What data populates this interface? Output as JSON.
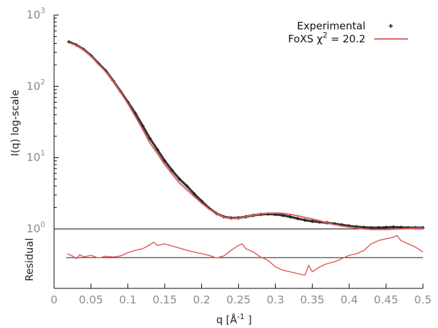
{
  "chart_data": [
    {
      "type": "scatter",
      "panel": "main",
      "ylabel": "I(q) log-scale",
      "yscale": "log",
      "ylim": [
        1,
        1000
      ],
      "xlim": [
        0,
        0.5
      ],
      "y_ticks": [
        {
          "value": 1,
          "base": "10",
          "exp": "0"
        },
        {
          "value": 10,
          "base": "10",
          "exp": "1"
        },
        {
          "value": 100,
          "base": "10",
          "exp": "2"
        },
        {
          "value": 1000,
          "base": "10",
          "exp": "3"
        }
      ],
      "legend": {
        "placement": "top-right",
        "experimental_label": "Experimental",
        "fit_prefix": "FoXS χ",
        "fit_sup": "2",
        "fit_suffix": " = 20.2"
      },
      "series": [
        {
          "name": "Experimental",
          "style": "points",
          "color": "#222222",
          "x": [
            0.02,
            0.03,
            0.04,
            0.05,
            0.06,
            0.07,
            0.08,
            0.09,
            0.1,
            0.11,
            0.12,
            0.13,
            0.14,
            0.15,
            0.16,
            0.17,
            0.18,
            0.19,
            0.2,
            0.21,
            0.22,
            0.23,
            0.24,
            0.25,
            0.26,
            0.27,
            0.28,
            0.29,
            0.3,
            0.31,
            0.32,
            0.33,
            0.34,
            0.35,
            0.36,
            0.37,
            0.38,
            0.39,
            0.4,
            0.41,
            0.42,
            0.43,
            0.44,
            0.45,
            0.46,
            0.47,
            0.48,
            0.49,
            0.5
          ],
          "y": [
            420,
            380,
            330,
            270,
            210,
            165,
            120,
            85,
            60,
            42,
            28,
            18.5,
            13,
            9,
            6.6,
            5,
            4,
            3.1,
            2.45,
            1.95,
            1.65,
            1.48,
            1.42,
            1.43,
            1.48,
            1.55,
            1.6,
            1.62,
            1.6,
            1.55,
            1.48,
            1.4,
            1.33,
            1.28,
            1.25,
            1.22,
            1.18,
            1.14,
            1.1,
            1.07,
            1.05,
            1.04,
            1.04,
            1.05,
            1.06,
            1.05,
            1.04,
            1.04,
            1.04
          ]
        },
        {
          "name": "FoXS χ2 = 20.2",
          "style": "line",
          "color": "#e05c5c",
          "x": [
            0.02,
            0.03,
            0.04,
            0.05,
            0.06,
            0.07,
            0.08,
            0.09,
            0.1,
            0.11,
            0.12,
            0.13,
            0.14,
            0.15,
            0.16,
            0.17,
            0.18,
            0.19,
            0.2,
            0.21,
            0.22,
            0.23,
            0.24,
            0.25,
            0.26,
            0.27,
            0.28,
            0.29,
            0.3,
            0.31,
            0.32,
            0.33,
            0.34,
            0.35,
            0.36,
            0.37,
            0.38,
            0.39,
            0.4,
            0.41,
            0.42,
            0.43,
            0.44,
            0.45,
            0.46,
            0.47,
            0.48,
            0.49,
            0.5
          ],
          "y": [
            410,
            375,
            325,
            265,
            205,
            160,
            118,
            83,
            57,
            38,
            25,
            16,
            11.5,
            8,
            5.9,
            4.4,
            3.55,
            2.85,
            2.3,
            1.9,
            1.65,
            1.47,
            1.4,
            1.42,
            1.48,
            1.56,
            1.63,
            1.66,
            1.67,
            1.65,
            1.6,
            1.53,
            1.45,
            1.38,
            1.3,
            1.22,
            1.15,
            1.1,
            1.06,
            1.03,
            1.0,
            0.98,
            0.98,
            0.98,
            0.99,
            1.0,
            1.01,
            1.02,
            1.03
          ]
        }
      ]
    },
    {
      "type": "line",
      "panel": "residual",
      "ylabel": "Residual",
      "xlabel_prefix": "q [Å",
      "xlabel_sup": "-1",
      "xlabel_suffix": " ]",
      "xlim": [
        0,
        0.5
      ],
      "ylim": [
        -1.0,
        0.8
      ],
      "x_ticks": [
        "0",
        "0.05",
        "0.1",
        "0.15",
        "0.2",
        "0.25",
        "0.3",
        "0.35",
        "0.4",
        "0.45",
        "0.5"
      ],
      "zero_line_color": "#111111",
      "series": [
        {
          "style": "line",
          "color": "#e05c5c",
          "x": [
            0.018,
            0.025,
            0.03,
            0.035,
            0.04,
            0.05,
            0.06,
            0.07,
            0.08,
            0.09,
            0.1,
            0.11,
            0.12,
            0.13,
            0.135,
            0.14,
            0.15,
            0.16,
            0.17,
            0.18,
            0.19,
            0.2,
            0.21,
            0.22,
            0.23,
            0.24,
            0.25,
            0.255,
            0.26,
            0.27,
            0.28,
            0.29,
            0.3,
            0.31,
            0.32,
            0.33,
            0.34,
            0.345,
            0.35,
            0.36,
            0.37,
            0.38,
            0.39,
            0.4,
            0.41,
            0.42,
            0.43,
            0.44,
            0.45,
            0.46,
            0.465,
            0.47,
            0.48,
            0.49,
            0.5
          ],
          "y": [
            0.05,
            -0.02,
            -0.1,
            0.02,
            -0.05,
            0.0,
            -0.08,
            -0.03,
            -0.05,
            -0.02,
            0.08,
            0.15,
            0.2,
            0.32,
            0.4,
            0.3,
            0.35,
            0.28,
            0.22,
            0.15,
            0.1,
            0.05,
            0.0,
            -0.08,
            -0.02,
            0.15,
            0.3,
            0.35,
            0.2,
            0.1,
            -0.05,
            -0.15,
            -0.35,
            -0.45,
            -0.5,
            -0.55,
            -0.6,
            -0.3,
            -0.5,
            -0.35,
            -0.25,
            -0.2,
            -0.1,
            0.0,
            0.05,
            0.15,
            0.35,
            0.45,
            0.5,
            0.55,
            0.6,
            0.45,
            0.35,
            0.25,
            0.1
          ]
        }
      ]
    }
  ]
}
